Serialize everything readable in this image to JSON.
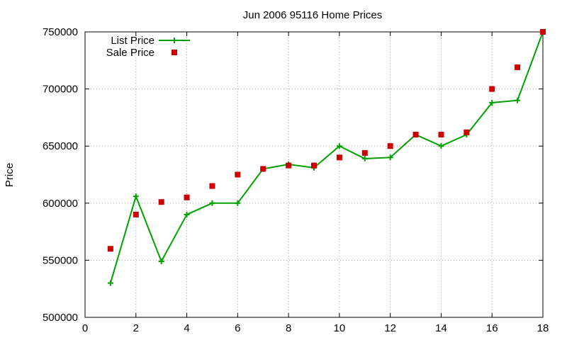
{
  "chart_data": {
    "type": "scatter",
    "title": "Jun 2006 95116 Home Prices",
    "xlabel": "",
    "ylabel": "Price",
    "xlim": [
      0,
      18
    ],
    "ylim": [
      500000,
      750000
    ],
    "xticks": [
      "0",
      "2",
      "4",
      "6",
      "8",
      "10",
      "12",
      "14",
      "16",
      "18"
    ],
    "yticks": [
      "500000",
      "550000",
      "600000",
      "650000",
      "700000",
      "750000"
    ],
    "grid": true,
    "legend_position": "top-left",
    "series": [
      {
        "name": "List Price",
        "style": "linespoints",
        "marker": "plus",
        "color": "#00a000",
        "x": [
          1,
          2,
          3,
          4,
          5,
          6,
          7,
          8,
          9,
          10,
          11,
          12,
          13,
          14,
          15,
          16,
          17,
          18
        ],
        "y": [
          530000,
          606000,
          549000,
          590000,
          600000,
          600000,
          630000,
          634000,
          631000,
          650000,
          639000,
          640000,
          660000,
          650000,
          660000,
          688000,
          690000,
          750000
        ]
      },
      {
        "name": "Sale Price",
        "style": "points",
        "marker": "square",
        "color": "#cc0000",
        "x": [
          1,
          2,
          3,
          4,
          5,
          6,
          7,
          8,
          9,
          10,
          11,
          12,
          13,
          14,
          15,
          16,
          17,
          18
        ],
        "y": [
          560000,
          590000,
          601000,
          605000,
          615000,
          625000,
          630000,
          633000,
          633000,
          640000,
          644000,
          650000,
          660000,
          660000,
          662000,
          700000,
          719000,
          750000
        ]
      }
    ]
  }
}
